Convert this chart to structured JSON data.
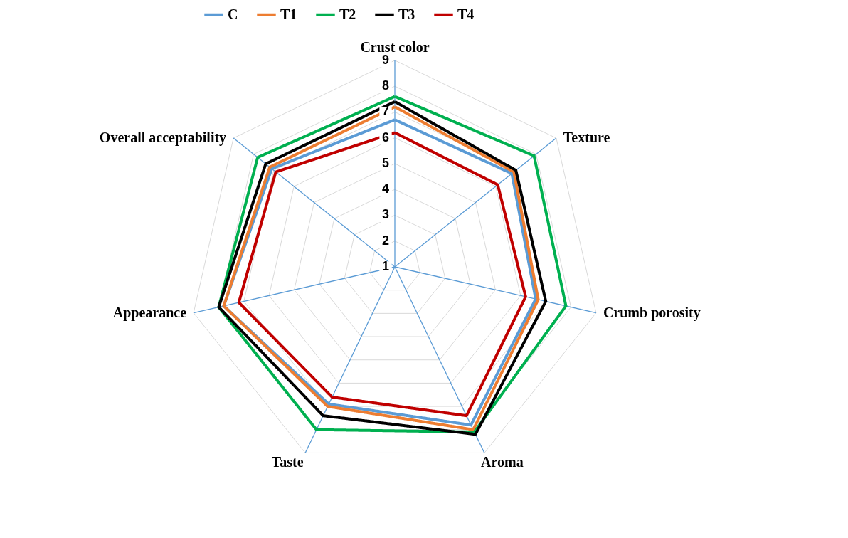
{
  "chart_data": {
    "type": "radar",
    "categories": [
      "Crust color",
      "Texture",
      "Crumb porosity",
      "Aroma",
      "Taste",
      "Appearance",
      "Overall acceptability"
    ],
    "ylim": [
      1,
      9
    ],
    "yticks": [
      1,
      2,
      3,
      4,
      5,
      6,
      7,
      8,
      9
    ],
    "grid": true,
    "legend": "top",
    "line_style": "solid",
    "marker": "none",
    "series": [
      {
        "name": "C",
        "color": "#5b9bd5",
        "values": [
          6.7,
          6.8,
          6.6,
          7.8,
          6.9,
          7.8,
          7.1
        ]
      },
      {
        "name": "T1",
        "color": "#ed7d31",
        "values": [
          7.2,
          6.9,
          6.7,
          8.0,
          7.0,
          7.8,
          7.2
        ]
      },
      {
        "name": "T2",
        "color": "#00b050",
        "values": [
          7.6,
          7.9,
          7.8,
          8.1,
          8.0,
          8.0,
          7.8
        ]
      },
      {
        "name": "T3",
        "color": "#000000",
        "values": [
          7.4,
          7.0,
          7.0,
          8.2,
          7.4,
          8.0,
          7.4
        ]
      },
      {
        "name": "T4",
        "color": "#c00000",
        "values": [
          6.2,
          6.1,
          6.2,
          7.4,
          6.6,
          7.2,
          6.9
        ]
      }
    ]
  }
}
